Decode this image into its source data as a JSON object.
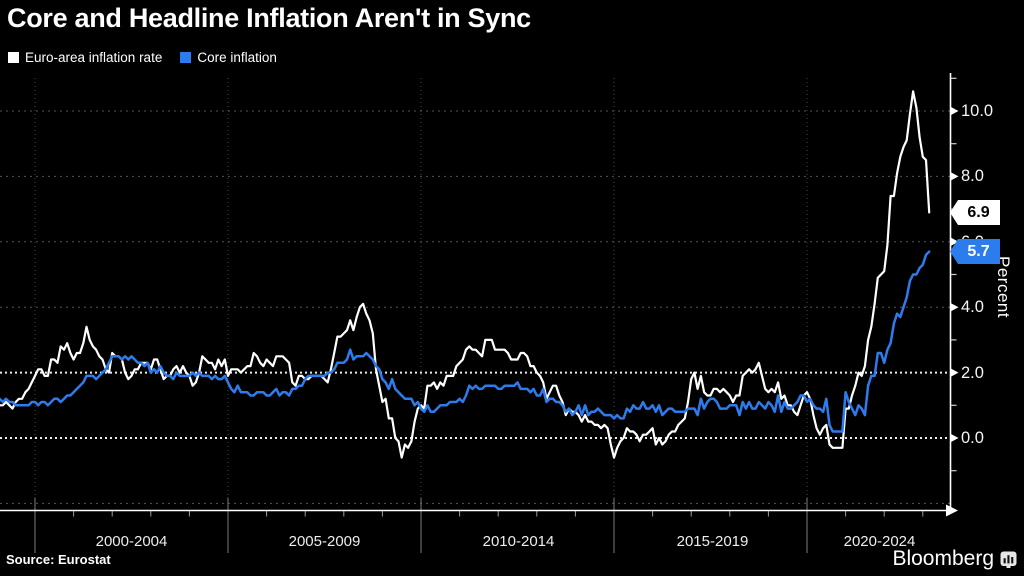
{
  "title": "Core and Headline Inflation Aren't in Sync",
  "legend": [
    {
      "label": "Euro-area inflation rate",
      "color": "#ffffff"
    },
    {
      "label": "Core inflation",
      "color": "#2d7ced"
    }
  ],
  "footer": {
    "source": "Source: Eurostat",
    "brand": "Bloomberg"
  },
  "chart_data": {
    "type": "line",
    "title": "Core and Headline Inflation Aren't in Sync",
    "background": "#000000",
    "grid": "dashed horizontal at even percents; dotted vertical at 5-year boundaries",
    "legend_position": "top-left",
    "x": {
      "frequency": "monthly",
      "start_year": 1999,
      "start_month": 1,
      "end_year": 2023,
      "end_month": 3,
      "period_labels": [
        "2000-2004",
        "2005-2009",
        "2010-2014",
        "2015-2019",
        "2020-2024"
      ],
      "boundary_years": [
        2000,
        2005,
        2010,
        2015,
        2020
      ]
    },
    "y_axis": {
      "label": "Percent",
      "side": "right",
      "range": [
        -2.2,
        11.0
      ],
      "major_ticks": [
        10,
        8,
        6,
        4,
        2,
        0
      ],
      "tick_labels": [
        "10.0",
        "8.0",
        "6.0",
        "4.0",
        "2.0",
        "0.0"
      ],
      "minor_ticks": [
        11,
        9,
        7,
        5,
        3,
        1,
        -1
      ],
      "gridlines_bright": [
        2,
        0
      ],
      "gridlines_faint": [
        10,
        8,
        6,
        4,
        -2
      ]
    },
    "end_labels": [
      {
        "text": "6.9",
        "value": 6.9,
        "bg": "#ffffff",
        "fg": "#000000",
        "series": "Euro-area inflation rate"
      },
      {
        "text": "5.7",
        "value": 5.7,
        "bg": "#2d7ced",
        "fg": "#ffffff",
        "series": "Core inflation"
      }
    ],
    "series": [
      {
        "name": "Euro-area inflation rate",
        "color": "#ffffff",
        "last_value": 6.9,
        "values": [
          1.2,
          1.0,
          1.0,
          1.1,
          1.0,
          0.9,
          1.1,
          1.2,
          1.2,
          1.4,
          1.5,
          1.7,
          1.9,
          2.1,
          2.1,
          1.9,
          1.9,
          2.4,
          2.4,
          2.3,
          2.8,
          2.7,
          2.9,
          2.6,
          2.4,
          2.6,
          2.6,
          2.9,
          3.4,
          3.0,
          2.8,
          2.7,
          2.5,
          2.4,
          2.1,
          2.0,
          2.6,
          2.5,
          2.5,
          2.4,
          2.0,
          1.8,
          1.9,
          2.1,
          2.1,
          2.3,
          2.3,
          2.3,
          2.1,
          2.4,
          2.4,
          2.1,
          1.8,
          1.9,
          1.9,
          2.1,
          2.2,
          2.0,
          2.2,
          2.0,
          1.9,
          1.6,
          1.7,
          2.0,
          2.5,
          2.4,
          2.3,
          2.3,
          2.1,
          2.4,
          2.2,
          2.4,
          1.9,
          2.1,
          2.1,
          2.1,
          2.0,
          2.1,
          2.2,
          2.2,
          2.6,
          2.5,
          2.3,
          2.2,
          2.4,
          2.3,
          2.2,
          2.5,
          2.5,
          2.5,
          2.4,
          2.3,
          1.7,
          1.6,
          1.9,
          1.9,
          1.8,
          1.8,
          1.9,
          1.9,
          1.9,
          1.9,
          1.8,
          1.7,
          2.1,
          2.6,
          3.1,
          3.1,
          3.2,
          3.3,
          3.6,
          3.3,
          3.7,
          4.0,
          4.1,
          3.8,
          3.6,
          3.2,
          2.1,
          1.6,
          1.1,
          1.2,
          0.6,
          0.6,
          0.0,
          -0.1,
          -0.6,
          -0.2,
          -0.3,
          -0.1,
          0.5,
          0.9,
          1.0,
          0.9,
          1.6,
          1.6,
          1.7,
          1.5,
          1.7,
          1.6,
          1.9,
          1.9,
          1.9,
          2.2,
          2.3,
          2.4,
          2.7,
          2.8,
          2.7,
          2.7,
          2.6,
          2.5,
          3.0,
          3.0,
          3.0,
          2.7,
          2.7,
          2.7,
          2.7,
          2.6,
          2.4,
          2.4,
          2.4,
          2.6,
          2.6,
          2.5,
          2.2,
          2.2,
          2.0,
          1.9,
          1.7,
          1.2,
          1.4,
          1.6,
          1.6,
          1.3,
          1.1,
          0.7,
          0.9,
          0.8,
          0.8,
          0.7,
          0.5,
          0.7,
          0.5,
          0.5,
          0.4,
          0.4,
          0.3,
          0.4,
          0.3,
          -0.2,
          -0.6,
          -0.3,
          -0.1,
          0.0,
          0.3,
          0.2,
          0.2,
          0.1,
          -0.1,
          0.1,
          0.1,
          0.2,
          0.3,
          -0.2,
          0.0,
          -0.2,
          -0.1,
          0.1,
          0.2,
          0.2,
          0.4,
          0.5,
          0.6,
          1.1,
          1.8,
          2.0,
          1.5,
          1.9,
          1.4,
          1.3,
          1.3,
          1.5,
          1.5,
          1.4,
          1.5,
          1.4,
          1.3,
          1.1,
          1.3,
          1.3,
          1.9,
          2.0,
          2.1,
          2.0,
          2.1,
          2.3,
          1.9,
          1.5,
          1.4,
          1.5,
          1.4,
          1.7,
          1.2,
          1.3,
          1.0,
          1.0,
          0.8,
          0.7,
          1.0,
          1.3,
          1.4,
          1.2,
          0.7,
          0.3,
          0.1,
          0.3,
          0.4,
          -0.2,
          -0.3,
          -0.3,
          -0.3,
          -0.3,
          0.9,
          0.9,
          1.3,
          1.6,
          2.0,
          1.9,
          2.2,
          3.0,
          3.4,
          4.1,
          4.9,
          5.0,
          5.1,
          5.9,
          7.4,
          7.4,
          8.1,
          8.6,
          8.9,
          9.1,
          9.9,
          10.6,
          10.1,
          9.2,
          8.6,
          8.5,
          6.9
        ]
      },
      {
        "name": "Core inflation",
        "color": "#2d7ced",
        "last_value": 5.7,
        "values": [
          1.3,
          1.2,
          1.1,
          1.2,
          1.1,
          1.1,
          1.0,
          1.0,
          1.0,
          1.0,
          1.0,
          1.1,
          1.1,
          1.0,
          1.1,
          1.1,
          1.0,
          1.1,
          1.2,
          1.2,
          1.1,
          1.2,
          1.3,
          1.3,
          1.4,
          1.5,
          1.6,
          1.7,
          1.9,
          1.9,
          1.9,
          1.8,
          1.9,
          2.0,
          2.1,
          2.3,
          2.5,
          2.5,
          2.5,
          2.4,
          2.5,
          2.4,
          2.5,
          2.4,
          2.3,
          2.3,
          2.2,
          2.3,
          2.0,
          2.1,
          2.0,
          2.2,
          2.0,
          1.9,
          1.9,
          1.8,
          2.0,
          1.9,
          1.9,
          1.9,
          1.9,
          2.0,
          1.9,
          2.0,
          1.9,
          1.9,
          1.9,
          1.8,
          1.9,
          1.8,
          1.8,
          1.9,
          1.7,
          1.5,
          1.4,
          1.6,
          1.4,
          1.4,
          1.4,
          1.3,
          1.3,
          1.4,
          1.4,
          1.4,
          1.3,
          1.3,
          1.4,
          1.5,
          1.3,
          1.4,
          1.4,
          1.3,
          1.5,
          1.5,
          1.6,
          1.6,
          1.8,
          1.9,
          1.9,
          1.9,
          1.9,
          1.9,
          1.9,
          2.0,
          2.0,
          2.1,
          2.3,
          2.3,
          2.3,
          2.4,
          2.7,
          2.4,
          2.5,
          2.5,
          2.5,
          2.6,
          2.5,
          2.4,
          2.2,
          2.1,
          1.8,
          1.7,
          1.5,
          1.8,
          1.5,
          1.4,
          1.3,
          1.2,
          1.2,
          1.2,
          1.0,
          1.1,
          0.9,
          0.8,
          1.0,
          0.8,
          0.8,
          0.9,
          1.0,
          1.0,
          1.0,
          1.1,
          1.1,
          1.1,
          1.2,
          1.1,
          1.3,
          1.6,
          1.5,
          1.6,
          1.5,
          1.5,
          1.6,
          1.6,
          1.6,
          1.6,
          1.5,
          1.5,
          1.6,
          1.6,
          1.6,
          1.6,
          1.7,
          1.5,
          1.5,
          1.5,
          1.4,
          1.5,
          1.3,
          1.3,
          1.5,
          1.1,
          1.2,
          1.2,
          1.1,
          1.1,
          1.0,
          0.8,
          0.9,
          0.7,
          0.8,
          1.0,
          0.7,
          1.0,
          0.7,
          0.8,
          0.8,
          0.9,
          0.8,
          0.7,
          0.7,
          0.7,
          0.6,
          0.7,
          0.6,
          0.6,
          0.9,
          0.8,
          1.0,
          0.9,
          0.9,
          1.1,
          0.9,
          0.9,
          1.0,
          0.8,
          1.0,
          0.7,
          0.8,
          0.9,
          0.9,
          0.8,
          0.8,
          0.8,
          0.8,
          0.9,
          0.9,
          0.9,
          0.7,
          1.2,
          0.9,
          1.1,
          1.2,
          1.2,
          1.1,
          0.9,
          0.9,
          0.9,
          1.0,
          1.0,
          1.0,
          0.7,
          1.1,
          0.9,
          1.1,
          0.9,
          0.9,
          1.1,
          1.0,
          0.9,
          1.1,
          1.0,
          0.8,
          1.3,
          0.8,
          1.1,
          0.9,
          0.9,
          1.0,
          1.1,
          1.3,
          1.3,
          1.1,
          1.2,
          1.0,
          0.9,
          0.9,
          0.8,
          1.2,
          0.4,
          0.2,
          0.2,
          0.2,
          0.2,
          1.4,
          1.1,
          0.9,
          0.7,
          1.0,
          0.9,
          0.7,
          1.6,
          1.9,
          1.9,
          2.6,
          2.6,
          2.3,
          2.7,
          2.9,
          3.5,
          3.8,
          3.7,
          4.0,
          4.3,
          4.8,
          5.0,
          5.0,
          5.2,
          5.3,
          5.6,
          5.7
        ]
      }
    ]
  }
}
